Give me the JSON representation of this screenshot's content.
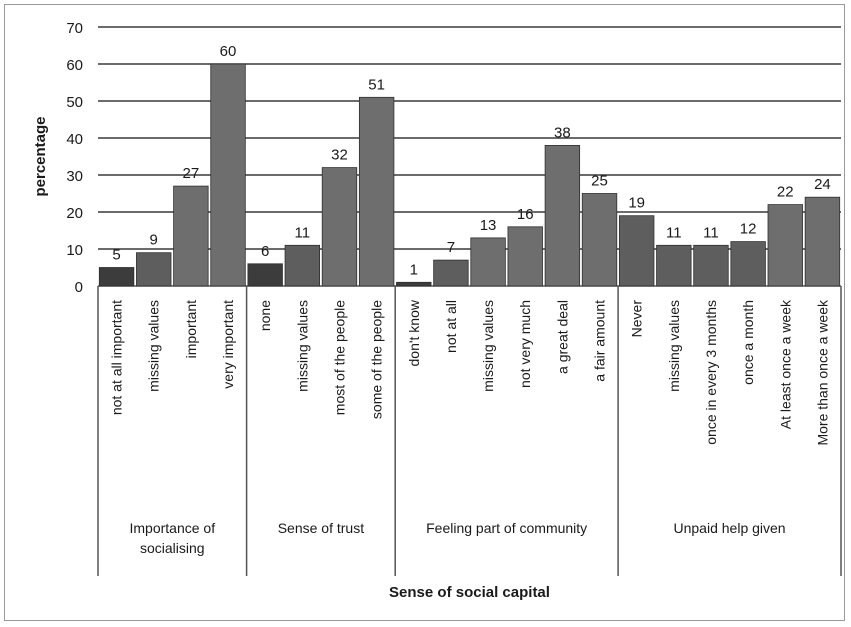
{
  "chart_data": {
    "type": "bar",
    "xlabel": "Sense of social capital",
    "ylabel": "percentage",
    "ylim": [
      0,
      70
    ],
    "yticks": [
      0,
      10,
      20,
      30,
      40,
      50,
      60,
      70
    ],
    "grid": true,
    "legend": "none",
    "groups": [
      {
        "name": "Importance of socialising",
        "categories": [
          "not at all important",
          "missing values",
          "important",
          "very important"
        ],
        "values": [
          5,
          9,
          27,
          60
        ]
      },
      {
        "name": "Sense of trust",
        "categories": [
          "none",
          "missing values",
          "most of the people",
          "some of the people"
        ],
        "values": [
          6,
          11,
          32,
          51
        ]
      },
      {
        "name": "Feeling part of community",
        "categories": [
          "don't know",
          "not at all",
          "missing values",
          "not very much",
          "a great deal",
          "a fair amount"
        ],
        "values": [
          1,
          7,
          13,
          16,
          38,
          25
        ]
      },
      {
        "name": "Unpaid help given",
        "categories": [
          "Never",
          "missing values",
          "once in every 3 months",
          "once a month",
          "At least once a week",
          "More than once a week"
        ],
        "values": [
          19,
          11,
          11,
          12,
          22,
          24
        ]
      }
    ],
    "colors": {
      "dark": "#3c3c3c",
      "mid": "#5e5e5e",
      "light": "#6e6e6e",
      "grid": "#3a3a3a",
      "axis": "#555555"
    }
  }
}
